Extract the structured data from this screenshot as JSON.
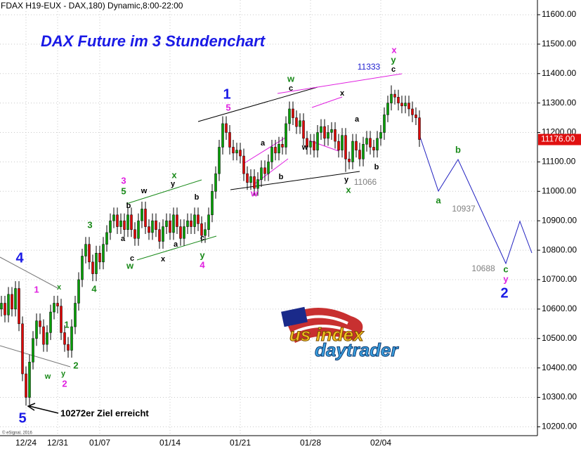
{
  "header": "FDAX H19-EUX - DAX,180) Dynamic,8:00-22:00",
  "copyright": "© eSignal, 2016",
  "logo": {
    "line1": "us index",
    "line2": "daytrader"
  },
  "chart_data": {
    "type": "candlestick",
    "title": "DAX Future im 3 Stundenchart",
    "up_color": "#00a000",
    "down_color": "#e00000",
    "grid": true,
    "categories": [
      null,
      null,
      null,
      null,
      null,
      null,
      null,
      "12/24",
      null,
      null,
      null,
      null,
      null,
      null,
      null,
      null,
      "12/31",
      null,
      null,
      null,
      null,
      null,
      null,
      null,
      null,
      null,
      null,
      null,
      "01/07",
      null,
      null,
      null,
      null,
      null,
      null,
      null,
      null,
      null,
      null,
      null,
      null,
      null,
      null,
      null,
      null,
      null,
      null,
      null,
      "01/14",
      null,
      null,
      null,
      null,
      null,
      null,
      null,
      null,
      null,
      null,
      null,
      null,
      null,
      null,
      null,
      null,
      null,
      null,
      null,
      "01/21",
      null,
      null,
      null,
      null,
      null,
      null,
      null,
      null,
      null,
      null,
      null,
      null,
      null,
      null,
      null,
      null,
      null,
      null,
      null,
      "01/28",
      null,
      null,
      null,
      null,
      null,
      null,
      null,
      null,
      null,
      null,
      null,
      null,
      null,
      null,
      null,
      null,
      null,
      null,
      null,
      "02/04",
      null,
      null,
      null,
      null,
      null,
      null,
      null,
      null,
      null,
      null,
      null
    ],
    "open": [
      10600,
      10620,
      10580,
      10650,
      10600,
      10670,
      10550,
      10380,
      10300,
      10420,
      10500,
      10560,
      10540,
      10480,
      10520,
      10590,
      10620,
      10610,
      10520,
      10480,
      10460,
      10540,
      10620,
      10700,
      10780,
      10820,
      10760,
      10720,
      10790,
      10760,
      10820,
      10860,
      10900,
      10920,
      10880,
      10900,
      10870,
      10920,
      10870,
      10840,
      10900,
      10940,
      10880,
      10860,
      10900,
      10870,
      10830,
      10880,
      10900,
      10860,
      10920,
      10880,
      10840,
      10880,
      10900,
      10880,
      10920,
      10890,
      10850,
      10870,
      10920,
      11000,
      11060,
      11150,
      11230,
      11200,
      11150,
      11130,
      11140,
      11120,
      11060,
      11030,
      11050,
      11010,
      11040,
      11080,
      11060,
      11100,
      11150,
      11130,
      11160,
      11150,
      11230,
      11280,
      11250,
      11220,
      11240,
      11180,
      11150,
      11170,
      11140,
      11200,
      11220,
      11180,
      11200,
      11210,
      11170,
      11140,
      11190,
      11110,
      11100,
      11170,
      11140,
      11110,
      11160,
      11180,
      11150,
      11140,
      11180,
      11200,
      11260,
      11300,
      11330,
      11320,
      11300,
      11290,
      11300,
      11280,
      11260,
      11250
    ],
    "high": [
      10645,
      10645,
      10675,
      10675,
      10695,
      10695,
      10575,
      10405,
      10445,
      10525,
      10585,
      10585,
      10565,
      10545,
      10615,
      10645,
      10645,
      10635,
      10545,
      10505,
      10565,
      10645,
      10725,
      10805,
      10845,
      10845,
      10785,
      10815,
      10815,
      10845,
      10885,
      10925,
      10945,
      10945,
      10925,
      10925,
      10945,
      10945,
      10895,
      10925,
      10965,
      10965,
      10905,
      10925,
      10925,
      10895,
      10905,
      10925,
      10925,
      10945,
      10945,
      10905,
      10905,
      10925,
      10925,
      10945,
      10945,
      10915,
      10895,
      10945,
      11025,
      11085,
      11175,
      11255,
      11255,
      11225,
      11175,
      11165,
      11165,
      11145,
      11085,
      11075,
      11075,
      11065,
      11105,
      11105,
      11125,
      11175,
      11175,
      11185,
      11185,
      11255,
      11305,
      11305,
      11275,
      11265,
      11265,
      11205,
      11195,
      11195,
      11225,
      11245,
      11245,
      11225,
      11235,
      11235,
      11195,
      11215,
      11215,
      11135,
      11195,
      11195,
      11165,
      11185,
      11205,
      11205,
      11175,
      11205,
      11225,
      11285,
      11325,
      11360,
      11345,
      11345,
      11325,
      11325,
      11325,
      11305,
      11285,
      11275
    ],
    "low": [
      10575,
      10555,
      10555,
      10575,
      10575,
      10525,
      10355,
      10272,
      10275,
      10395,
      10475,
      10515,
      10455,
      10455,
      10495,
      10565,
      10585,
      10495,
      10455,
      10435,
      10435,
      10515,
      10595,
      10675,
      10755,
      10735,
      10695,
      10695,
      10735,
      10735,
      10795,
      10835,
      10875,
      10855,
      10855,
      10845,
      10845,
      10845,
      10815,
      10815,
      10875,
      10855,
      10835,
      10835,
      10845,
      10805,
      10805,
      10855,
      10835,
      10835,
      10855,
      10815,
      10815,
      10855,
      10855,
      10855,
      10865,
      10825,
      10825,
      10845,
      10895,
      10975,
      11035,
      11125,
      11175,
      11125,
      11105,
      11105,
      11095,
      11035,
      11005,
      11005,
      10985,
      10985,
      11015,
      11035,
      11035,
      11075,
      11105,
      11105,
      11125,
      11125,
      11205,
      11225,
      11195,
      11195,
      11155,
      11125,
      11125,
      11115,
      11115,
      11175,
      11155,
      11155,
      11175,
      11145,
      11115,
      11115,
      11066,
      11075,
      11075,
      11115,
      11085,
      11085,
      11135,
      11125,
      11115,
      11115,
      11155,
      11175,
      11235,
      11275,
      11295,
      11275,
      11265,
      11265,
      11255,
      11235,
      11225,
      11151
    ],
    "close": [
      10620,
      10580,
      10650,
      10600,
      10670,
      10550,
      10380,
      10300,
      10420,
      10500,
      10560,
      10540,
      10480,
      10520,
      10590,
      10620,
      10610,
      10520,
      10480,
      10460,
      10540,
      10620,
      10700,
      10780,
      10820,
      10760,
      10720,
      10790,
      10760,
      10820,
      10860,
      10900,
      10920,
      10880,
      10900,
      10870,
      10920,
      10870,
      10840,
      10900,
      10940,
      10880,
      10860,
      10900,
      10870,
      10830,
      10880,
      10900,
      10860,
      10920,
      10880,
      10840,
      10880,
      10900,
      10880,
      10920,
      10890,
      10850,
      10870,
      10920,
      11000,
      11060,
      11150,
      11230,
      11200,
      11150,
      11130,
      11140,
      11120,
      11060,
      11030,
      11050,
      11010,
      11040,
      11080,
      11060,
      11100,
      11150,
      11130,
      11160,
      11150,
      11230,
      11280,
      11250,
      11220,
      11240,
      11180,
      11150,
      11170,
      11140,
      11200,
      11220,
      11180,
      11200,
      11210,
      11170,
      11140,
      11190,
      11110,
      11100,
      11170,
      11140,
      11110,
      11160,
      11180,
      11150,
      11140,
      11180,
      11200,
      11260,
      11300,
      11330,
      11320,
      11300,
      11290,
      11300,
      11280,
      11260,
      11250,
      11176
    ],
    "ylim": [
      10170,
      11650
    ],
    "yticks": [
      {
        "value": 10200,
        "label": "10200.00"
      },
      {
        "value": 10300,
        "label": "10300.00"
      },
      {
        "value": 10400,
        "label": "10400.00"
      },
      {
        "value": 10500,
        "label": "10500.00"
      },
      {
        "value": 10600,
        "label": "10600.00"
      },
      {
        "value": 10700,
        "label": "10700.00"
      },
      {
        "value": 10800,
        "label": "10800.00"
      },
      {
        "value": 10900,
        "label": "10900.00"
      },
      {
        "value": 11000,
        "label": "11000.00"
      },
      {
        "value": 11100,
        "label": "11100.00"
      },
      {
        "value": 11200,
        "label": "11200.00"
      },
      {
        "value": 11300,
        "label": "11300.00"
      },
      {
        "value": 11400,
        "label": "11400.00"
      },
      {
        "value": 11500,
        "label": "11500.00"
      },
      {
        "value": 11600,
        "label": "11600.00"
      }
    ],
    "last_price": {
      "value": 11176,
      "label": "11176.00"
    },
    "target_note": "10272er Ziel erreicht",
    "annotations": [
      {
        "text": "4",
        "color": "#1a1ae6"
      },
      {
        "text": "5",
        "color": "#1a1ae6"
      },
      {
        "text": "1",
        "color": "#1a1ae6"
      },
      {
        "text": "2",
        "color": "#1a1ae6"
      },
      {
        "text": "1",
        "color": "#e020e0"
      },
      {
        "text": "x",
        "color": "#1a8a1a"
      },
      {
        "text": "1",
        "color": "#1a8a1a"
      },
      {
        "text": "w",
        "color": "#1a8a1a"
      },
      {
        "text": "y",
        "color": "#1a8a1a"
      },
      {
        "text": "2",
        "color": "#e020e0"
      },
      {
        "text": "2",
        "color": "#1a8a1a"
      },
      {
        "text": "3",
        "color": "#1a8a1a"
      },
      {
        "text": "4",
        "color": "#1a8a1a"
      },
      {
        "text": "3",
        "color": "#e020e0"
      },
      {
        "text": "5",
        "color": "#1a8a1a"
      },
      {
        "text": "b",
        "color": "#000000"
      },
      {
        "text": "w",
        "color": "#000000"
      },
      {
        "text": "a",
        "color": "#000000"
      },
      {
        "text": "c",
        "color": "#000000"
      },
      {
        "text": "w",
        "color": "#1a8a1a"
      },
      {
        "text": "x",
        "color": "#000000"
      },
      {
        "text": "x",
        "color": "#1a8a1a"
      },
      {
        "text": "y",
        "color": "#000000"
      },
      {
        "text": "a",
        "color": "#000000"
      },
      {
        "text": "b",
        "color": "#000000"
      },
      {
        "text": "c",
        "color": "#000000"
      },
      {
        "text": "y",
        "color": "#1a8a1a"
      },
      {
        "text": "4",
        "color": "#e020e0"
      },
      {
        "text": "5",
        "color": "#e020e0"
      },
      {
        "text": "a",
        "color": "#000000"
      },
      {
        "text": "b",
        "color": "#000000"
      },
      {
        "text": "w",
        "color": "#e020e0"
      },
      {
        "text": "w",
        "color": "#1a8a1a"
      },
      {
        "text": "c",
        "color": "#000000"
      },
      {
        "text": "x",
        "color": "#000000"
      },
      {
        "text": "a",
        "color": "#000000"
      },
      {
        "text": "w",
        "color": "#000000"
      },
      {
        "text": "b",
        "color": "#000000"
      },
      {
        "text": "y",
        "color": "#000000"
      },
      {
        "text": "x",
        "color": "#1a8a1a"
      },
      {
        "text": "11066",
        "color": "#808080"
      },
      {
        "text": "11333",
        "color": "#2020d0"
      },
      {
        "text": "x",
        "color": "#e020e0"
      },
      {
        "text": "y",
        "color": "#1a8a1a"
      },
      {
        "text": "c",
        "color": "#000000"
      },
      {
        "text": "b",
        "color": "#1a8a1a"
      },
      {
        "text": "a",
        "color": "#1a8a1a"
      },
      {
        "text": "10937",
        "color": "#808080"
      },
      {
        "text": "10688",
        "color": "#808080"
      },
      {
        "text": "c",
        "color": "#1a8a1a"
      },
      {
        "text": "y",
        "color": "#e020e0"
      }
    ]
  }
}
